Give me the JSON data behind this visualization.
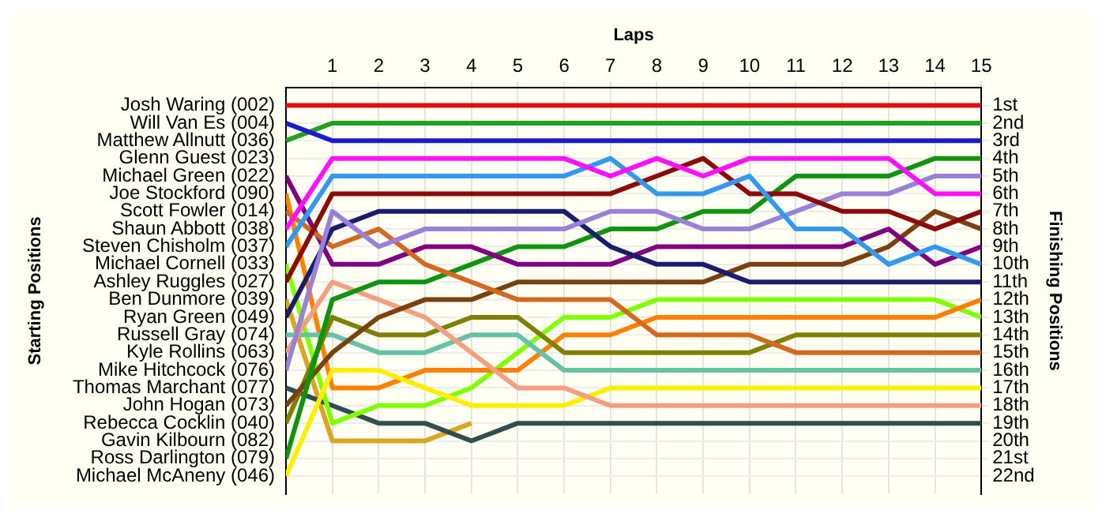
{
  "chart_data": {
    "type": "line",
    "xlabel": "Laps",
    "ylabel": "Finishing Positions",
    "annotations": [
      "Starting Positions"
    ],
    "grid": true,
    "x": [
      0,
      1,
      2,
      3,
      4,
      5,
      6,
      7,
      8,
      9,
      10,
      11,
      12,
      13,
      14,
      15
    ],
    "xlim": [
      0,
      15
    ],
    "xticks": [
      1,
      2,
      3,
      4,
      5,
      6,
      7,
      8,
      9,
      10,
      11,
      12,
      13,
      14,
      15
    ],
    "ylim": [
      23,
      0
    ],
    "y_categories": [
      "Josh Waring (002)",
      "Will Van Es (004)",
      "Matthew Allnutt (036)",
      "Glenn Guest (023)",
      "Michael Green (022)",
      "Joe Stockford (090)",
      "Scott Fowler (014)",
      "Shaun Abbott (038)",
      "Steven Chisholm (037)",
      "Michael Cornell (033)",
      "Ashley Ruggles (027)",
      "Ben Dunmore (039)",
      "Ryan Green (049)",
      "Russell Gray (074)",
      "Kyle Rollins (063)",
      "Mike Hitchcock (076)",
      "Thomas Marchant (077)",
      "John Hogan (073)",
      "Rebecca Cocklin (040)",
      "Gavin Kilbourn (082)",
      "Ross Darlington (079)",
      "Michael McAneny (046)"
    ],
    "yticks": [
      {
        "value": 1,
        "label": "1st"
      },
      {
        "value": 2,
        "label": "2nd"
      },
      {
        "value": 3,
        "label": "3rd"
      },
      {
        "value": 4,
        "label": "4th"
      },
      {
        "value": 5,
        "label": "5th"
      },
      {
        "value": 6,
        "label": "6th"
      },
      {
        "value": 7,
        "label": "7th"
      },
      {
        "value": 8,
        "label": "8th"
      },
      {
        "value": 9,
        "label": "9th"
      },
      {
        "value": 10,
        "label": "10th"
      },
      {
        "value": 11,
        "label": "11th"
      },
      {
        "value": 12,
        "label": "12th"
      },
      {
        "value": 13,
        "label": "13th"
      },
      {
        "value": 14,
        "label": "14th"
      },
      {
        "value": 15,
        "label": "15th"
      },
      {
        "value": 16,
        "label": "16th"
      },
      {
        "value": 17,
        "label": "17th"
      },
      {
        "value": 18,
        "label": "18th"
      },
      {
        "value": 19,
        "label": "19th"
      },
      {
        "value": 20,
        "label": "20th"
      },
      {
        "value": 21,
        "label": "21st"
      },
      {
        "value": 22,
        "label": "22nd"
      }
    ],
    "series": [
      {
        "color": "#e01010",
        "values": [
          1,
          1,
          1,
          1,
          1,
          1,
          1,
          1,
          1,
          1,
          1,
          1,
          1,
          1,
          1,
          1
        ]
      },
      {
        "color": "#1c1cc8",
        "values": [
          2,
          3,
          3,
          3,
          3,
          3,
          3,
          3,
          3,
          3,
          3,
          3,
          3,
          3,
          3,
          3
        ]
      },
      {
        "color": "#22a022",
        "values": [
          3,
          2,
          2,
          2,
          2,
          2,
          2,
          2,
          2,
          2,
          2,
          2,
          2,
          2,
          2,
          2
        ]
      },
      {
        "color": "#ff10ff",
        "values": [
          8,
          4,
          4,
          4,
          4,
          4,
          4,
          5,
          4,
          5,
          4,
          4,
          4,
          4,
          6,
          6
        ]
      },
      {
        "color": "#3399ee",
        "values": [
          9,
          5,
          5,
          5,
          5,
          5,
          5,
          4,
          6,
          6,
          5,
          8,
          8,
          10,
          9,
          10
        ]
      },
      {
        "color": "#8b0a0a",
        "values": [
          11,
          6,
          6,
          6,
          6,
          6,
          6,
          6,
          5,
          4,
          6,
          6,
          7,
          7,
          8,
          7
        ]
      },
      {
        "color": "#9980d8",
        "values": [
          16,
          7,
          9,
          8,
          8,
          8,
          8,
          7,
          7,
          8,
          8,
          7,
          6,
          6,
          5,
          5
        ]
      },
      {
        "color": "#1c1c6e",
        "values": [
          13,
          8,
          7,
          7,
          7,
          7,
          7,
          9,
          10,
          10,
          11,
          11,
          11,
          11,
          11,
          11
        ]
      },
      {
        "color": "#d2691e",
        "values": [
          7,
          9,
          8,
          10,
          11,
          12,
          12,
          12,
          14,
          14,
          14,
          15,
          15,
          15,
          15,
          15
        ]
      },
      {
        "color": "#800080",
        "values": [
          5,
          10,
          10,
          9,
          9,
          10,
          10,
          10,
          9,
          9,
          9,
          9,
          9,
          8,
          10,
          9
        ]
      },
      {
        "color": "#109410",
        "values": [
          21,
          12,
          11,
          11,
          10,
          9,
          9,
          8,
          8,
          7,
          7,
          5,
          5,
          5,
          4,
          4
        ]
      },
      {
        "color": "#7a4010",
        "values": [
          18,
          15,
          13,
          12,
          12,
          11,
          11,
          11,
          11,
          11,
          10,
          10,
          10,
          9,
          7,
          8
        ]
      },
      {
        "color": "#f4a080",
        "values": [
          15,
          11,
          12,
          13,
          15,
          17,
          17,
          18,
          18,
          18,
          18,
          18,
          18,
          18,
          18,
          18
        ]
      },
      {
        "color": "#808000",
        "values": [
          19,
          13,
          14,
          14,
          13,
          13,
          15,
          15,
          15,
          15,
          15,
          14,
          14,
          14,
          14,
          14
        ]
      },
      {
        "color": "#66c2a5",
        "values": [
          14,
          14,
          15,
          15,
          14,
          14,
          16,
          16,
          16,
          16,
          16,
          16,
          16,
          16,
          16,
          16
        ]
      },
      {
        "color": "#ffee00",
        "values": [
          22,
          16,
          16,
          17,
          18,
          18,
          18,
          17,
          17,
          17,
          17,
          17,
          17,
          17,
          17,
          17
        ]
      },
      {
        "color": "#ff8000",
        "values": [
          6,
          17,
          17,
          16,
          16,
          16,
          14,
          14,
          13,
          13,
          13,
          13,
          13,
          13,
          13,
          12
        ]
      },
      {
        "color": "#80ff00",
        "values": [
          10,
          19,
          18,
          18,
          17,
          15,
          13,
          13,
          12,
          12,
          12,
          12,
          12,
          12,
          12,
          13
        ]
      },
      {
        "color": "#2f4f4f",
        "values": [
          17,
          18,
          19,
          19,
          20,
          19,
          19,
          19,
          19,
          19,
          19,
          19,
          19,
          19,
          19,
          19
        ]
      },
      {
        "color": "#daa520",
        "values": [
          12,
          20,
          20,
          20,
          19,
          null,
          null,
          null,
          null,
          null,
          null,
          null,
          null,
          null,
          null,
          null
        ]
      }
    ]
  }
}
